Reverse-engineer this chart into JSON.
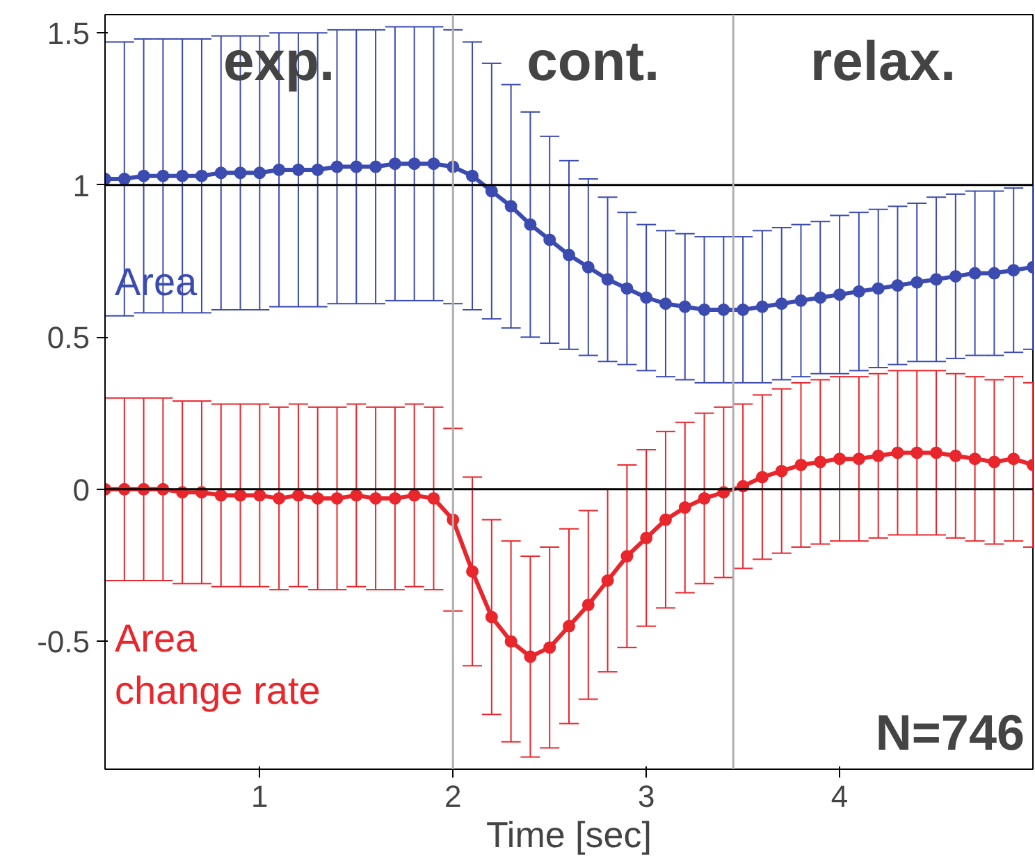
{
  "chart_data": {
    "type": "line",
    "xlabel": "Time [sec]",
    "x": [
      0.2,
      0.3,
      0.4,
      0.5,
      0.6,
      0.7,
      0.8,
      0.9,
      1.0,
      1.1,
      1.2,
      1.3,
      1.4,
      1.5,
      1.6,
      1.7,
      1.8,
      1.9,
      2.0,
      2.1,
      2.2,
      2.3,
      2.4,
      2.5,
      2.6,
      2.7,
      2.8,
      2.9,
      3.0,
      3.1,
      3.2,
      3.3,
      3.4,
      3.5,
      3.6,
      3.7,
      3.8,
      3.9,
      4.0,
      4.1,
      4.2,
      4.3,
      4.4,
      4.5,
      4.6,
      4.7,
      4.8,
      4.9,
      5.0
    ],
    "series": [
      {
        "name": "Area",
        "color": "#3b4bb0",
        "values": [
          1.02,
          1.02,
          1.03,
          1.03,
          1.03,
          1.03,
          1.04,
          1.04,
          1.04,
          1.05,
          1.05,
          1.05,
          1.06,
          1.06,
          1.06,
          1.07,
          1.07,
          1.07,
          1.06,
          1.03,
          0.98,
          0.93,
          0.87,
          0.82,
          0.77,
          0.73,
          0.69,
          0.66,
          0.63,
          0.61,
          0.6,
          0.59,
          0.59,
          0.59,
          0.6,
          0.61,
          0.62,
          0.63,
          0.64,
          0.65,
          0.66,
          0.67,
          0.68,
          0.69,
          0.7,
          0.71,
          0.71,
          0.72,
          0.73
        ],
        "errors": [
          0.45,
          0.45,
          0.45,
          0.45,
          0.45,
          0.45,
          0.45,
          0.45,
          0.45,
          0.45,
          0.45,
          0.45,
          0.45,
          0.45,
          0.45,
          0.45,
          0.45,
          0.45,
          0.45,
          0.44,
          0.42,
          0.4,
          0.37,
          0.34,
          0.31,
          0.29,
          0.27,
          0.25,
          0.24,
          0.24,
          0.24,
          0.24,
          0.24,
          0.24,
          0.25,
          0.25,
          0.25,
          0.25,
          0.26,
          0.26,
          0.26,
          0.26,
          0.26,
          0.27,
          0.27,
          0.27,
          0.27,
          0.27,
          0.27
        ]
      },
      {
        "name": "Area change rate",
        "color": "#e8262c",
        "values": [
          0.0,
          0.0,
          0.0,
          0.0,
          -0.01,
          -0.01,
          -0.02,
          -0.02,
          -0.02,
          -0.03,
          -0.02,
          -0.03,
          -0.03,
          -0.02,
          -0.03,
          -0.03,
          -0.02,
          -0.03,
          -0.1,
          -0.27,
          -0.42,
          -0.5,
          -0.55,
          -0.52,
          -0.45,
          -0.38,
          -0.3,
          -0.22,
          -0.16,
          -0.1,
          -0.06,
          -0.03,
          -0.01,
          0.01,
          0.04,
          0.06,
          0.08,
          0.09,
          0.1,
          0.1,
          0.11,
          0.12,
          0.12,
          0.12,
          0.11,
          0.1,
          0.09,
          0.1,
          0.08
        ],
        "errors": [
          0.3,
          0.3,
          0.3,
          0.3,
          0.3,
          0.3,
          0.3,
          0.3,
          0.3,
          0.3,
          0.3,
          0.3,
          0.3,
          0.3,
          0.3,
          0.3,
          0.3,
          0.3,
          0.3,
          0.31,
          0.32,
          0.33,
          0.33,
          0.33,
          0.32,
          0.31,
          0.3,
          0.3,
          0.29,
          0.29,
          0.28,
          0.28,
          0.28,
          0.27,
          0.27,
          0.27,
          0.27,
          0.27,
          0.27,
          0.27,
          0.27,
          0.27,
          0.27,
          0.27,
          0.27,
          0.27,
          0.27,
          0.27,
          0.27
        ]
      }
    ],
    "xlim": [
      0.2,
      5.0
    ],
    "ylim": [
      -0.92,
      1.56
    ],
    "xticks": [
      1,
      2,
      3,
      4
    ],
    "yticks": [
      1.5,
      1,
      0.5,
      0,
      -0.5
    ],
    "ref_lines": [
      {
        "axis": "y",
        "value": 1,
        "color": "#000000"
      },
      {
        "axis": "y",
        "value": 0,
        "color": "#000000"
      },
      {
        "axis": "x",
        "value": 2,
        "color": "#b0b0b0"
      },
      {
        "axis": "x",
        "value": 3.45,
        "color": "#b0b0b0"
      }
    ],
    "annotations": [
      "exp.",
      "cont.",
      "relax.",
      "N=746"
    ],
    "marker": "circle",
    "grid": false
  }
}
